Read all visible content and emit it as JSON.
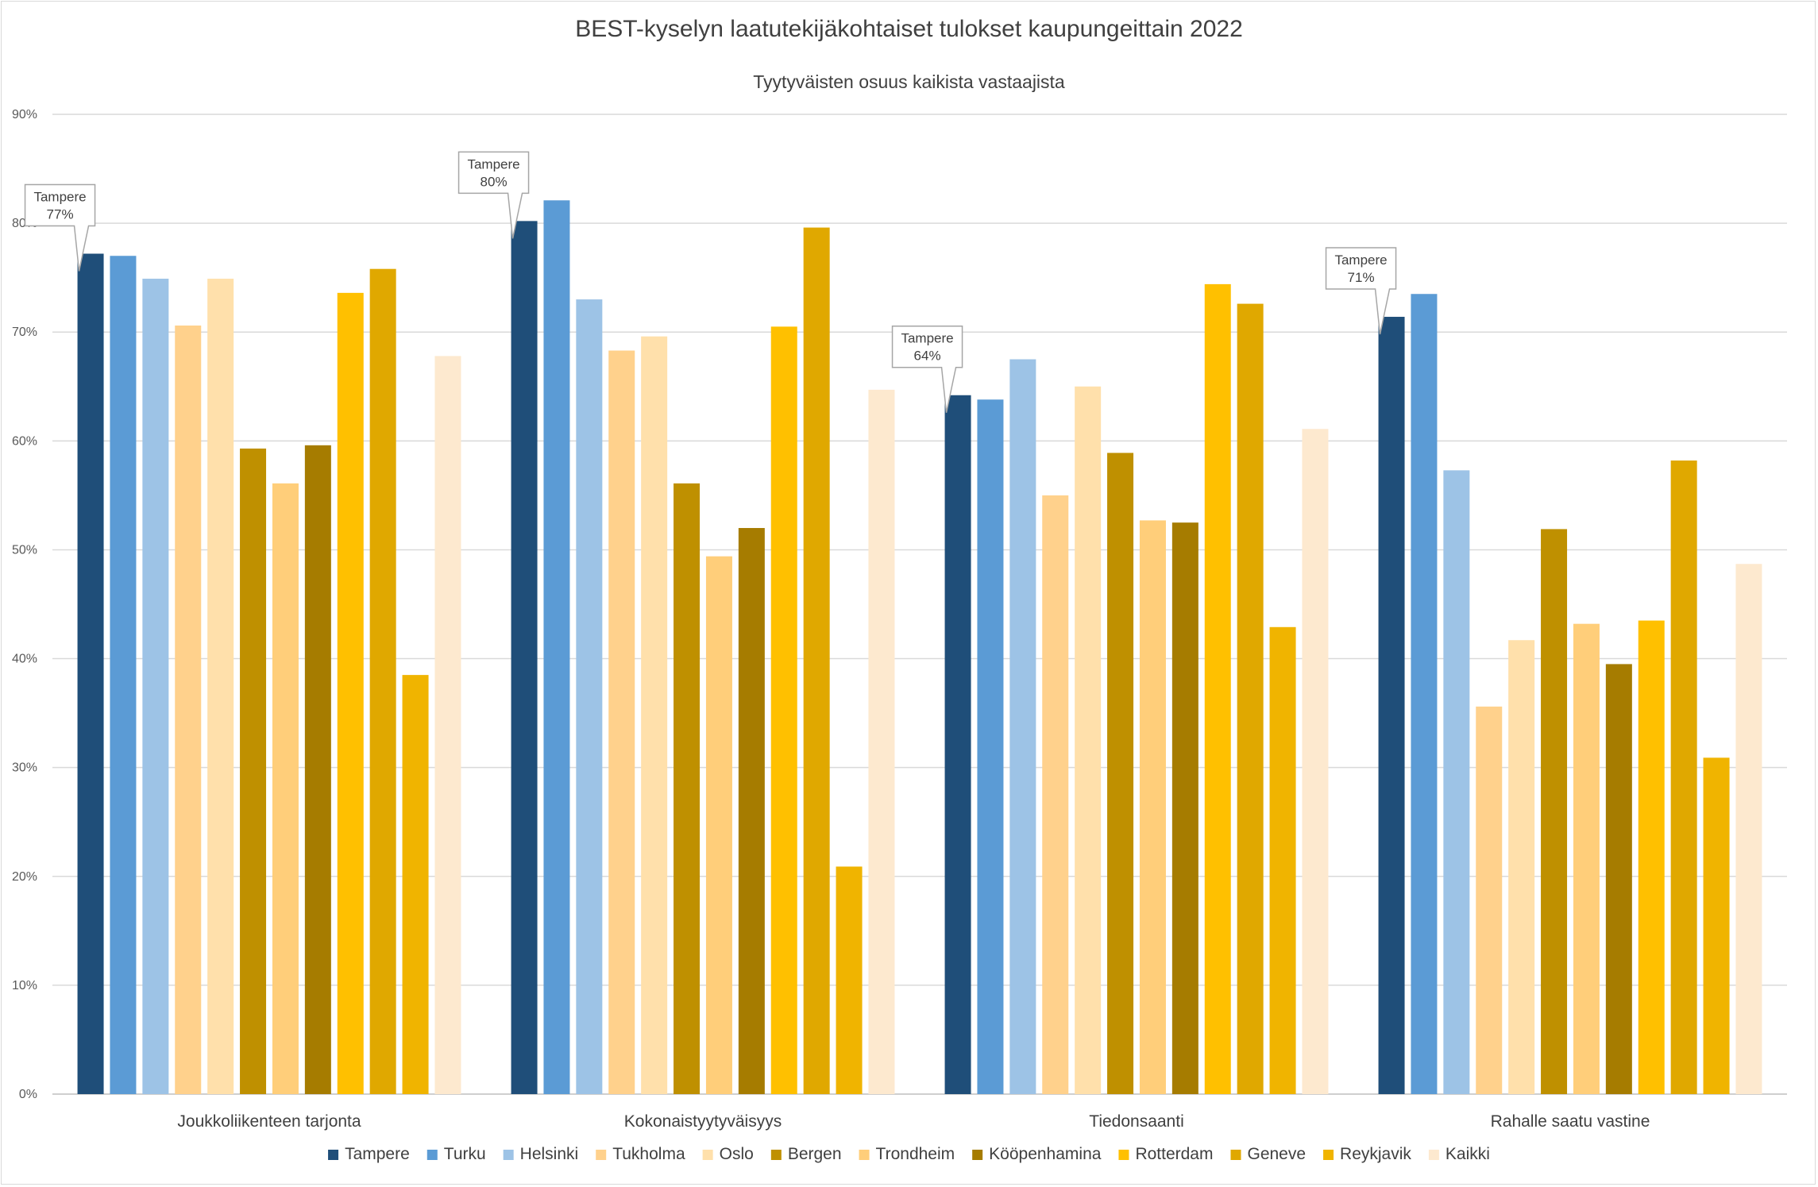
{
  "chart_data": {
    "type": "bar",
    "title": "BEST-kyselyn laatutekijäkohtaiset tulokset kaupungeittain 2022",
    "subtitle": "Tyytyväisten osuus kaikista vastaajista",
    "xlabel": "",
    "ylabel": "",
    "ylim": [
      0,
      90
    ],
    "yticks": [
      "0%",
      "10%",
      "20%",
      "30%",
      "40%",
      "50%",
      "60%",
      "70%",
      "80%",
      "90%"
    ],
    "grid": true,
    "legend_position": "bottom",
    "categories": [
      "Joukkoliikenteen tarjonta",
      "Kokonaistyytyväisyys",
      "Tiedonsaanti",
      "Rahalle saatu vastine"
    ],
    "series": [
      {
        "name": "Tampere",
        "color": "#1f4e79",
        "values": [
          77.2,
          80.2,
          64.2,
          71.4
        ]
      },
      {
        "name": "Turku",
        "color": "#5b9bd5",
        "values": [
          77.0,
          82.1,
          63.8,
          73.5
        ]
      },
      {
        "name": "Helsinki",
        "color": "#9dc3e6",
        "values": [
          74.9,
          73.0,
          67.5,
          57.3
        ]
      },
      {
        "name": "Tukholma",
        "color": "#ffd18c",
        "values": [
          70.6,
          68.3,
          55.0,
          35.6
        ]
      },
      {
        "name": "Oslo",
        "color": "#ffe0ab",
        "values": [
          74.9,
          69.6,
          65.0,
          41.7
        ]
      },
      {
        "name": "Bergen",
        "color": "#bf9000",
        "values": [
          59.3,
          56.1,
          58.9,
          51.9
        ]
      },
      {
        "name": "Trondheim",
        "color": "#ffce7a",
        "values": [
          56.1,
          49.4,
          52.7,
          43.2
        ]
      },
      {
        "name": "Kööpenhamina",
        "color": "#a67c00",
        "values": [
          59.6,
          52.0,
          52.5,
          39.5
        ]
      },
      {
        "name": "Rotterdam",
        "color": "#ffc000",
        "values": [
          73.6,
          70.5,
          74.4,
          43.5
        ]
      },
      {
        "name": "Geneve",
        "color": "#e0a800",
        "values": [
          75.8,
          79.6,
          72.6,
          58.2
        ]
      },
      {
        "name": "Reykjavik",
        "color": "#f0b400",
        "values": [
          38.5,
          20.9,
          42.9,
          30.9
        ]
      },
      {
        "name": "Kaikki",
        "color": "#fde9cf",
        "values": [
          67.8,
          64.7,
          61.1,
          48.7
        ]
      }
    ],
    "annotations": [
      {
        "category": "Joukkoliikenteen tarjonta",
        "series": "Tampere",
        "line1": "Tampere",
        "line2": "77%"
      },
      {
        "category": "Kokonaistyytyväisyys",
        "series": "Tampere",
        "line1": "Tampere",
        "line2": "80%"
      },
      {
        "category": "Tiedonsaanti",
        "series": "Tampere",
        "line1": "Tampere",
        "line2": "64%"
      },
      {
        "category": "Rahalle saatu vastine",
        "series": "Tampere",
        "line1": "Tampere",
        "line2": "71%"
      }
    ]
  }
}
